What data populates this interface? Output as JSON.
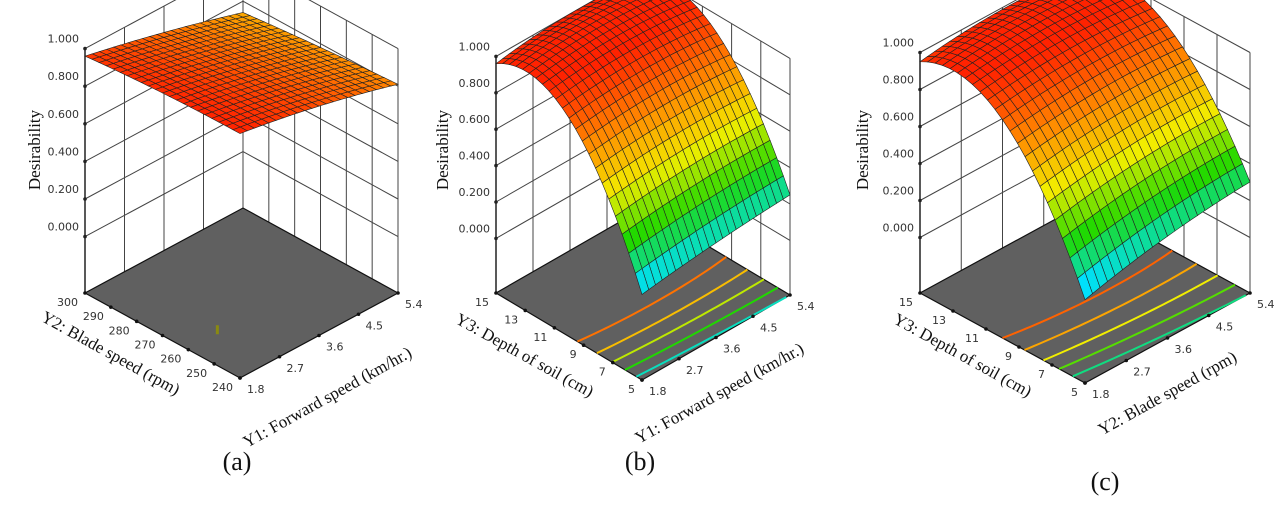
{
  "colormap": [
    "#1e64ff",
    "#00e0ff",
    "#20d800",
    "#f2ee00",
    "#ff8c00",
    "#ff2200"
  ],
  "chart_data": [
    {
      "type": "surface",
      "caption": "(a)",
      "zlabel": "Desirability",
      "xlabel": "Y1: Forward speed (km/hr.)",
      "ylabel": "Y2: Blade speed (rpm)",
      "zticks": [
        "0.000",
        "0.200",
        "0.400",
        "0.600",
        "0.800",
        "1.000"
      ],
      "xticks": [
        "1.8",
        "2.7",
        "3.6",
        "4.5",
        "5.4"
      ],
      "yticks": [
        "240",
        "250",
        "260",
        "270",
        "280",
        "290",
        "300"
      ],
      "xlim": [
        1.8,
        5.4
      ],
      "ylim": [
        240,
        300
      ],
      "zlim": [
        0,
        1
      ],
      "z_grid_note_rows": "y = min, mid, max; cols: x = min, mid, max",
      "z_grid": [
        [
          1.0,
          0.92,
          0.81
        ],
        [
          0.99,
          0.9,
          0.78
        ],
        [
          0.96,
          0.86,
          0.74
        ]
      ],
      "contour_levels": []
    },
    {
      "type": "surface",
      "caption": "(b)",
      "zlabel": "Desirability",
      "xlabel": "Y1: Forward speed (km/hr.)",
      "ylabel": "Y3: Depth of soil  (cm)",
      "zticks": [
        "0.000",
        "0.200",
        "0.400",
        "0.600",
        "0.800",
        "1.000"
      ],
      "xticks": [
        "1.8",
        "2.7",
        "3.6",
        "4.5",
        "5.4"
      ],
      "yticks": [
        "5",
        "7",
        "9",
        "11",
        "13",
        "15"
      ],
      "xlim": [
        1.8,
        5.4
      ],
      "ylim": [
        5,
        15
      ],
      "zlim": [
        0,
        1
      ],
      "z_grid": [
        [
          0.17,
          0.22,
          0.25
        ],
        [
          0.9,
          0.93,
          0.9
        ],
        [
          0.96,
          1.0,
          0.97
        ]
      ],
      "contour_levels": [
        0.25,
        0.4,
        0.55,
        0.7,
        0.85
      ]
    },
    {
      "type": "surface",
      "caption": "(c)",
      "zlabel": "Desirability",
      "xlabel": "Y2: Blade speed (rpm)",
      "ylabel": "Y3: Depth of soil  (cm)",
      "zticks": [
        "0.000",
        "0.200",
        "0.400",
        "0.600",
        "0.800",
        "1.000"
      ],
      "xticks": [
        "1.8",
        "2.7",
        "3.6",
        "4.5",
        "5.4"
      ],
      "yticks": [
        "5",
        "7",
        "9",
        "11",
        "13",
        "15"
      ],
      "xlim": [
        1.8,
        5.4
      ],
      "ylim": [
        5,
        15
      ],
      "zlim": [
        0,
        1
      ],
      "z_grid": [
        [
          0.15,
          0.25,
          0.3
        ],
        [
          0.88,
          0.92,
          0.9
        ],
        [
          0.95,
          0.99,
          0.96
        ]
      ],
      "contour_levels": [
        0.3,
        0.45,
        0.6,
        0.75,
        0.88
      ]
    }
  ]
}
